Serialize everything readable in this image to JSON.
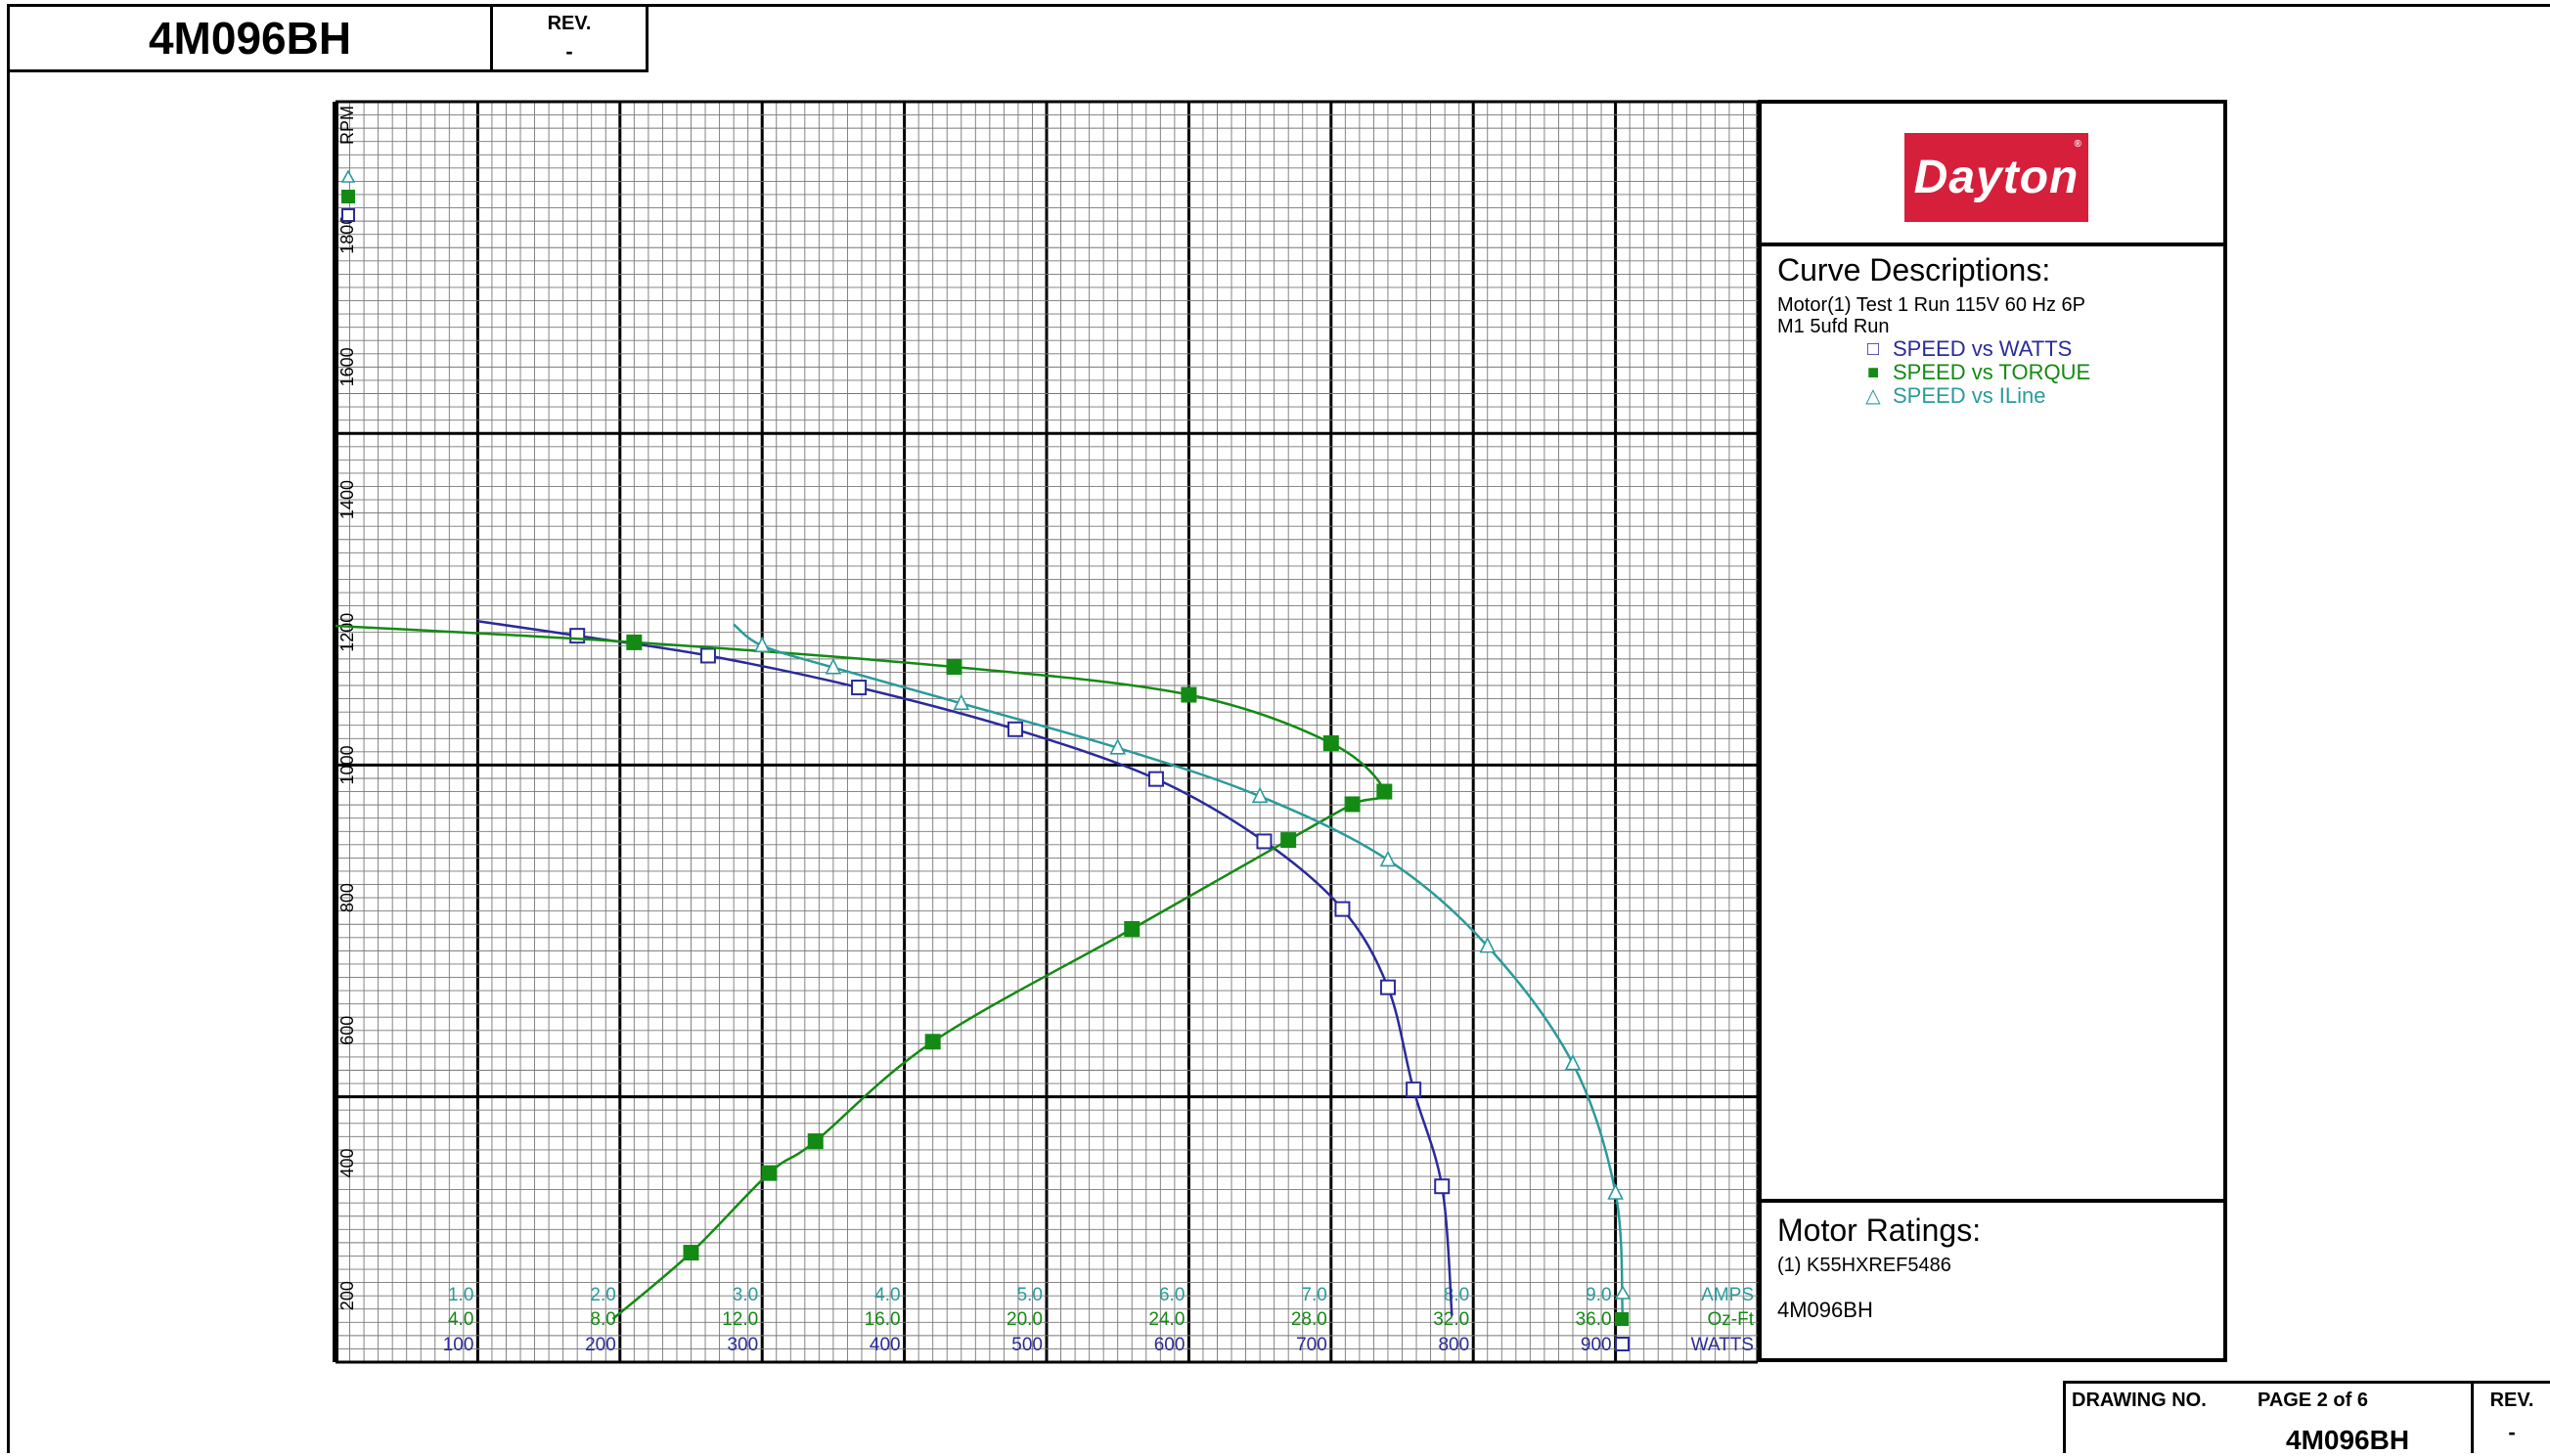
{
  "header": {
    "model": "4M096BH",
    "rev_label": "REV.",
    "rev_value": "-"
  },
  "logo": {
    "text": "Dayton",
    "reg": "®"
  },
  "curve_descriptions": {
    "title": "Curve Descriptions:",
    "line1": "Motor(1) Test 1 Run 115V 60 Hz 6P",
    "line2": "M1 5ufd Run",
    "items": [
      {
        "label": "SPEED vs WATTS",
        "color": "#2a2a9a"
      },
      {
        "label": "SPEED vs TORQUE",
        "color": "#138a13"
      },
      {
        "label": "SPEED vs ILine",
        "color": "#2b9a9a"
      }
    ]
  },
  "motor_ratings": {
    "title": "Motor Ratings:",
    "line": "(1) K55HXREF5486",
    "model": "4M096BH"
  },
  "footer": {
    "drawing_label": "DRAWING NO.",
    "page": "PAGE  2  of  6",
    "number": "4M096BH",
    "rev_label": "REV.",
    "rev_value": "-"
  },
  "chart_data": {
    "type": "line",
    "y_axis": {
      "label": "RPM",
      "min": 100,
      "max": 2000,
      "ticks": [
        200,
        400,
        600,
        800,
        1000,
        1200,
        1400,
        1600,
        1800
      ]
    },
    "x_axes": [
      {
        "name": "AMPS",
        "min": 0,
        "max": 10,
        "ticks": [
          "1.0",
          "2.0",
          "3.0",
          "4.0",
          "5.0",
          "6.0",
          "7.0",
          "8.0",
          "9.0"
        ],
        "color": "#2b9a9a"
      },
      {
        "name": "Oz-Ft",
        "min": 0,
        "max": 40,
        "ticks": [
          "4.0",
          "8.0",
          "12.0",
          "16.0",
          "20.0",
          "24.0",
          "28.0",
          "32.0",
          "36.0"
        ],
        "color": "#138a13"
      },
      {
        "name": "WATTS",
        "min": 0,
        "max": 1000,
        "ticks": [
          "100",
          "200",
          "300",
          "400",
          "500",
          "600",
          "700",
          "800",
          "900"
        ],
        "color": "#2a2a9a"
      }
    ],
    "series": [
      {
        "name": "SPEED vs WATTS",
        "axis": "WATTS",
        "marker": "square-open",
        "color": "#2a2a9a",
        "points": [
          [
            100,
            1217
          ],
          [
            170,
            1195
          ],
          [
            262,
            1165
          ],
          [
            368,
            1117
          ],
          [
            478,
            1054
          ],
          [
            577,
            979
          ],
          [
            653,
            885
          ],
          [
            708,
            783
          ],
          [
            740,
            665
          ],
          [
            758,
            511
          ],
          [
            778,
            365
          ],
          [
            785,
            170
          ]
        ]
      },
      {
        "name": "SPEED vs TORQUE",
        "axis": "Oz-Ft",
        "marker": "square-filled",
        "color": "#138a13",
        "points": [
          [
            0,
            1210
          ],
          [
            8.4,
            1185
          ],
          [
            17.4,
            1148
          ],
          [
            24,
            1106
          ],
          [
            28,
            1033
          ],
          [
            29.5,
            960
          ],
          [
            28.6,
            941
          ],
          [
            26.8,
            887
          ],
          [
            22.4,
            753
          ],
          [
            16.8,
            583
          ],
          [
            13.5,
            433
          ],
          [
            12.2,
            385
          ],
          [
            10,
            265
          ],
          [
            7.8,
            165
          ]
        ]
      },
      {
        "name": "SPEED vs ILine",
        "axis": "AMPS",
        "marker": "triangle-open",
        "color": "#2b9a9a",
        "points": [
          [
            2.8,
            1212
          ],
          [
            3.0,
            1180
          ],
          [
            3.5,
            1147
          ],
          [
            4.4,
            1093
          ],
          [
            5.5,
            1026
          ],
          [
            6.5,
            953
          ],
          [
            7.4,
            857
          ],
          [
            8.1,
            727
          ],
          [
            8.7,
            550
          ],
          [
            9.0,
            355
          ],
          [
            9.05,
            170
          ]
        ]
      }
    ]
  }
}
